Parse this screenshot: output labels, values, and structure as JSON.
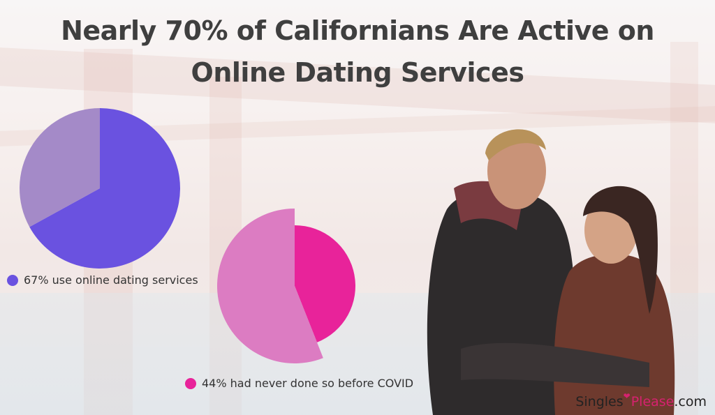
{
  "title": "Nearly 70% of Californians Are Active on Online Dating Services",
  "chart_data": [
    {
      "type": "pie",
      "slices": [
        {
          "label": "67% use online dating services",
          "value": 67,
          "color": "#6a52e0"
        },
        {
          "value": 33,
          "color": "#a48ac8"
        }
      ],
      "legend": {
        "label": "67% use online dating services",
        "color": "#6a52e0"
      }
    },
    {
      "type": "pie",
      "slices": [
        {
          "label": "44% had never done so before COVID",
          "value": 44,
          "color": "#e8239a"
        },
        {
          "value": 56,
          "color": "#dc7cc2"
        }
      ],
      "legend": {
        "label": "44% had never done so before COVID",
        "color": "#e8239a"
      }
    }
  ],
  "brand": {
    "part1": "Singles",
    "part2": "Please",
    "part3": ".com",
    "icon": "heart-icon"
  }
}
